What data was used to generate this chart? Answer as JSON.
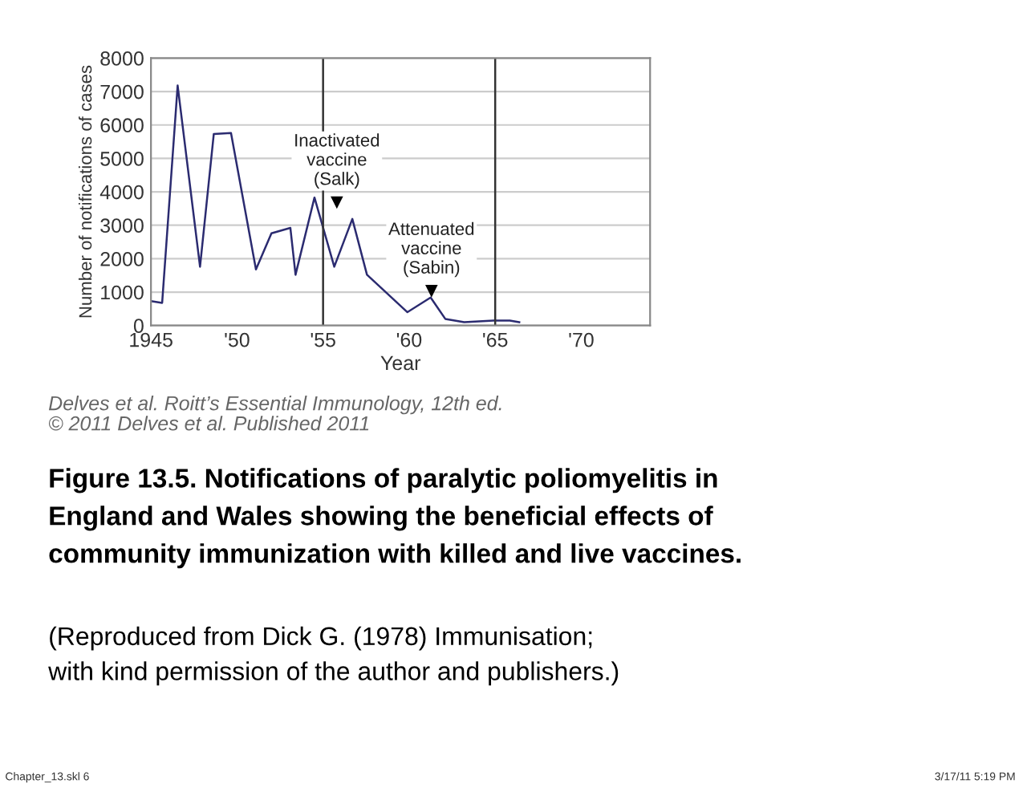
{
  "chart_data": {
    "type": "line",
    "xlabel": "Year",
    "ylabel": "Number of notifications of cases",
    "x": [
      1945.0,
      1945.65,
      1946.55,
      1947.85,
      1948.65,
      1949.65,
      1951.1,
      1952.0,
      1953.1,
      1953.4,
      1954.5,
      1955.65,
      1956.7,
      1957.55,
      1959.9,
      1961.25,
      1962.1,
      1963.2,
      1964.9,
      1965.85,
      1966.4
    ],
    "series": [
      {
        "color": "#2b2b70",
        "values": [
          730,
          680,
          7180,
          1760,
          5730,
          5760,
          1680,
          2760,
          2920,
          1520,
          3830,
          1760,
          3190,
          1520,
          400,
          840,
          200,
          100,
          150,
          150,
          100
        ]
      }
    ],
    "xlim": [
      1945,
      1974
    ],
    "ylim": [
      0,
      8000
    ],
    "xticks": [
      1945,
      {
        "value": 1950,
        "label": "'50"
      },
      {
        "value": 1955,
        "label": "'55"
      },
      {
        "value": 1960,
        "label": "'60"
      },
      {
        "value": 1965,
        "label": "'65"
      },
      {
        "value": 1970,
        "label": "'70"
      }
    ],
    "yticks": [
      0,
      1000,
      2000,
      3000,
      4000,
      5000,
      6000,
      7000,
      8000
    ],
    "grid": "y",
    "ref_lines": [
      {
        "axis": "x",
        "value": 1955,
        "color": "#333333"
      },
      {
        "axis": "x",
        "value": 1965,
        "color": "#333333"
      }
    ],
    "annotations": [
      {
        "text": "Inactivated\nvaccine\n(Salk)",
        "x": 1955.8,
        "y": 3700
      },
      {
        "text": "Attenuated\nvaccine\n(Sabin)",
        "x": 1961.3,
        "y": 1050
      },
      "Delves et al. Roitt’s Essential Immunology, 12th ed.\n© 2011 Delves et al. Published 2011",
      "Figure 13.5. Notifications of paralytic poliomyelitis in\nEngland and Wales showing the beneficial effects of\ncommunity immunization with killed and live vaccines.",
      "(Reproduced from Dick G. (1978) Immunisation;\nwith kind permission of the author and publishers.)",
      "Chapter_13.skl 6",
      "3/17/11 5:19 PM"
    ]
  }
}
